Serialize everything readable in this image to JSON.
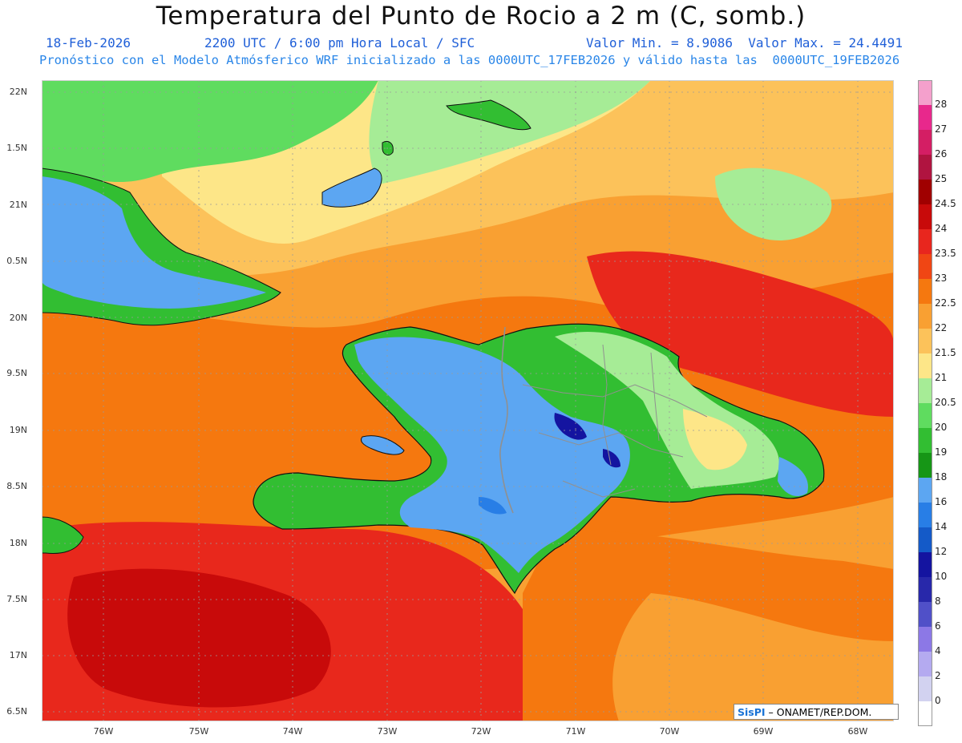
{
  "header": {
    "title": "Temperatura del Punto de Rocio a 2 m (C, somb.)",
    "date": "18-Feb-2026",
    "time": "2200 UTC / 6:00 pm Hora Local / SFC",
    "minmax": "Valor Min. = 8.9086  Valor Max. = 24.4491",
    "model": "Pronóstico con el Modelo Atmósferico WRF inicializado a las 0000UTC_17FEB2026 y válido hasta las  0000UTC_19FEB2026"
  },
  "axes": {
    "lat_labels": [
      "22N",
      "1.5N",
      "21N",
      "0.5N",
      "20N",
      "9.5N",
      "19N",
      "8.5N",
      "18N",
      "7.5N",
      "17N",
      "6.5N"
    ],
    "lon_labels": [
      "76W",
      "75W",
      "74W",
      "73W",
      "72W",
      "71W",
      "70W",
      "69W",
      "68W"
    ]
  },
  "colorbar": {
    "labels": [
      "28",
      "27",
      "26",
      "25",
      "24.5",
      "24",
      "23.5",
      "23",
      "22.5",
      "22",
      "21.5",
      "21",
      "20.5",
      "20",
      "19",
      "18",
      "16",
      "14",
      "12",
      "10",
      "8",
      "6",
      "4",
      "2",
      "0"
    ],
    "colors": [
      "#f4a0cc",
      "#e8288c",
      "#d41e64",
      "#b01440",
      "#a00000",
      "#c80a0a",
      "#e8261e",
      "#f04614",
      "#f5780f",
      "#f9a032",
      "#fcc25a",
      "#fde688",
      "#a6ec96",
      "#5fdc5f",
      "#32be32",
      "#169616",
      "#5ca6f2",
      "#287ee6",
      "#145ac8",
      "#1414a0",
      "#2828aa",
      "#5050c8",
      "#8c78e6",
      "#b4aaf0",
      "#d2d2f0",
      "#ffffff"
    ]
  },
  "credit": {
    "logo": "SisPI",
    "text": "– ONAMET/REP.DOM."
  },
  "map_colors": {
    "sea_hot": "#e8281c",
    "sea_warm": "#f5780f",
    "sea_mild": "#f9a032",
    "sea_cool": "#fcc25a",
    "sea_pale": "#fde688",
    "land_blue": "#5ca6f2",
    "land_blue2": "#287ee6",
    "land_dark": "#1414a0",
    "land_green": "#32be32",
    "land_green2": "#169616",
    "land_lightgreen": "#a6ec96",
    "land_yellow": "#fde688",
    "border": "#909090"
  }
}
